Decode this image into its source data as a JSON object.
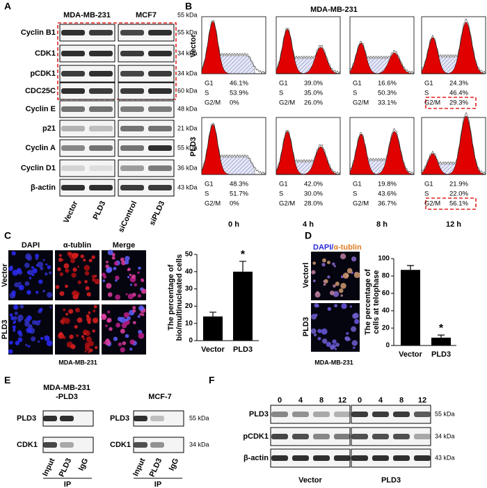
{
  "panels": {
    "A": {
      "label": "A",
      "cell_lines": [
        "MDA-MB-231",
        "MCF7"
      ],
      "top_marker": "55 kDa",
      "proteins": [
        {
          "name": "Cyclin B1",
          "kda": "55 kDa"
        },
        {
          "name": "CDK1",
          "kda": "34 kDa"
        },
        {
          "name": "pCDK1",
          "kda": "34 kDa"
        },
        {
          "name": "CDC25C",
          "kda": "60 kDa"
        },
        {
          "name": "Cyclin E",
          "kda": "48 kDa"
        },
        {
          "name": "p21",
          "kda": "21 kDa"
        },
        {
          "name": "Cyclin A",
          "kda": "55 kDa"
        },
        {
          "name": "Cyclin D1",
          "kda": "36 kDa"
        },
        {
          "name": "β-actin",
          "kda": "43 kDa"
        }
      ],
      "lanes": [
        "Vector",
        "PLD3",
        "siControl",
        "siPLD3"
      ]
    },
    "B": {
      "label": "B",
      "title": "MDA-MB-231",
      "phases": [
        "G1",
        "S",
        "G2/M"
      ],
      "times": [
        "0 h",
        "4 h",
        "8 h",
        "12 h"
      ],
      "rows": [
        {
          "name": "Vector",
          "values": [
            [
              "46.1%",
              "53.9%",
              "0%"
            ],
            [
              "39.0%",
              "35.0%",
              "26.0%"
            ],
            [
              "16.6%",
              "50.3%",
              "33.1%"
            ],
            [
              "24.3%",
              "46.4%",
              "29.3%"
            ]
          ]
        },
        {
          "name": "PLD3",
          "values": [
            [
              "48.3%",
              "51.7%",
              "0%"
            ],
            [
              "42.0%",
              "30.0%",
              "28.0%"
            ],
            [
              "19.8%",
              "43.6%",
              "36.7%"
            ],
            [
              "21.9%",
              "22.0%",
              "56.1%"
            ]
          ]
        }
      ]
    },
    "C": {
      "label": "C",
      "columns": [
        "DAPI",
        "α-tublin",
        "Merge"
      ],
      "rows": [
        "Vector",
        "PLD3"
      ],
      "caption": "MDA-MB-231"
    },
    "D": {
      "label": "D",
      "title_parts": [
        "DAPI/",
        "α-tublin"
      ],
      "rows": [
        "Vectorl",
        "PLD3"
      ],
      "caption": "MDA-MB-231"
    },
    "E": {
      "label": "E",
      "blots": [
        {
          "title": [
            "MDA-MB-231",
            "-PLD3"
          ],
          "rows": [
            "PLD3",
            "CDK1"
          ]
        },
        {
          "title": [
            "MCF-7"
          ],
          "rows": [
            "PLD3",
            "CDK1"
          ],
          "kda": [
            "55 kDa",
            "34 kDa"
          ]
        }
      ],
      "lanes": [
        "Input",
        "PLD3",
        "IgG"
      ],
      "group": "IP"
    },
    "F": {
      "label": "F",
      "lanes": [
        "0",
        "4",
        "8",
        "12",
        "0",
        "4",
        "8",
        "12"
      ],
      "rows": [
        {
          "name": "PLD3",
          "kda": "55 kDa"
        },
        {
          "name": "pCDK1",
          "kda": "34 kDa"
        },
        {
          "name": "β-actin",
          "kda": "43 kDa"
        }
      ],
      "groups": [
        "Vector",
        "PLD3"
      ]
    }
  },
  "chart_data": [
    {
      "type": "bar",
      "ylabel": [
        "The percentage of",
        "bio/multinucleated cells"
      ],
      "categories": [
        "Vector",
        "PLD3"
      ],
      "values": [
        14,
        40
      ],
      "errors": [
        2.5,
        6
      ],
      "ylim": [
        0,
        50
      ],
      "yticks": [
        0,
        10,
        20,
        30,
        40,
        50
      ],
      "color": "#000000",
      "annotation": "*"
    },
    {
      "type": "bar",
      "ylabel": [
        "The percentage of",
        "cells at telophase"
      ],
      "categories": [
        "Vector",
        "PLD3"
      ],
      "values": [
        87,
        9
      ],
      "errors": [
        5,
        3
      ],
      "ylim": [
        0,
        100
      ],
      "yticks": [
        0,
        20,
        40,
        60,
        80,
        100
      ],
      "color": "#000000",
      "annotation": "*"
    }
  ]
}
